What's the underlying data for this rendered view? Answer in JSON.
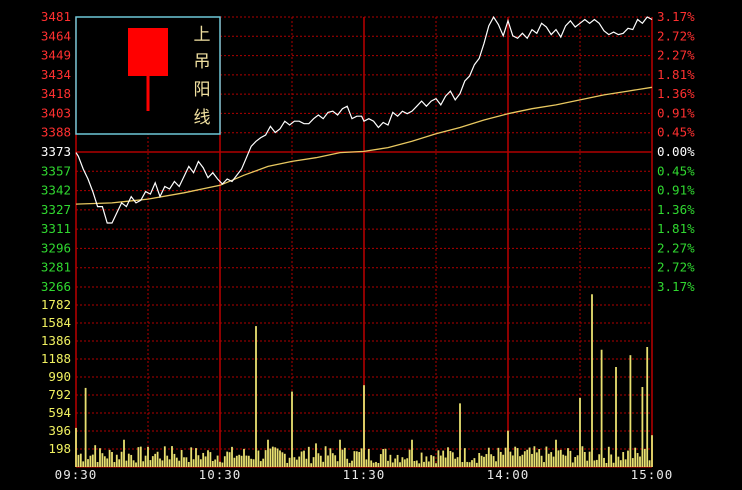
{
  "colors": {
    "background": "#000000",
    "grid": "#b00000",
    "up": "#ff3030",
    "down": "#30d830",
    "neutral": "#ffffff",
    "price_line": "#ffffff",
    "avg_line": "#e8c860",
    "volume": "#e8e070",
    "volume_label": "#f0f060",
    "time_label": "#e8e8e8",
    "legend_border": "#6ec8d8",
    "candle": "#ff0000",
    "legend_text": "#f0e0a0"
  },
  "legend": {
    "text_chars": [
      "上",
      "吊",
      "阳",
      "线"
    ],
    "pattern": "hanging-man-bullish-candle"
  },
  "chart_data": [
    {
      "type": "line",
      "name": "intraday-price",
      "x_axis": {
        "ticks": [
          "09:30",
          "10:30",
          "11:30",
          "14:00",
          "15:00"
        ],
        "trading_minutes_range": [
          0,
          240
        ]
      },
      "y_left_ticks": [
        "3481",
        "3464",
        "3449",
        "3434",
        "3418",
        "3403",
        "3388",
        "3373",
        "3357",
        "3342",
        "3327",
        "3311",
        "3296",
        "3281",
        "3266"
      ],
      "y_right_ticks": [
        "3.17%",
        "2.72%",
        "2.27%",
        "1.81%",
        "1.36%",
        "0.91%",
        "0.45%",
        "0.00%",
        "0.45%",
        "0.91%",
        "1.36%",
        "1.81%",
        "2.27%",
        "2.72%",
        "3.17%"
      ],
      "ylim": [
        3266,
        3481
      ],
      "reference_price": 3373,
      "series": [
        {
          "role": "price",
          "points": [
            [
              0,
              3373
            ],
            [
              1,
              3370
            ],
            [
              3,
              3360
            ],
            [
              5,
              3352
            ],
            [
              7,
              3342
            ],
            [
              9,
              3330
            ],
            [
              11,
              3330
            ],
            [
              13,
              3317
            ],
            [
              15,
              3317
            ],
            [
              17,
              3325
            ],
            [
              19,
              3333
            ],
            [
              21,
              3330
            ],
            [
              23,
              3338
            ],
            [
              25,
              3333
            ],
            [
              27,
              3335
            ],
            [
              29,
              3342
            ],
            [
              31,
              3340
            ],
            [
              33,
              3349
            ],
            [
              35,
              3338
            ],
            [
              37,
              3346
            ],
            [
              39,
              3344
            ],
            [
              41,
              3350
            ],
            [
              43,
              3346
            ],
            [
              45,
              3354
            ],
            [
              47,
              3362
            ],
            [
              49,
              3357
            ],
            [
              51,
              3366
            ],
            [
              53,
              3361
            ],
            [
              55,
              3353
            ],
            [
              57,
              3357
            ],
            [
              59,
              3352
            ],
            [
              61,
              3348
            ],
            [
              63,
              3352
            ],
            [
              65,
              3350
            ],
            [
              67,
              3355
            ],
            [
              69,
              3360
            ],
            [
              71,
              3369
            ],
            [
              73,
              3378
            ],
            [
              75,
              3382
            ],
            [
              77,
              3385
            ],
            [
              79,
              3387
            ],
            [
              81,
              3394
            ],
            [
              83,
              3389
            ],
            [
              85,
              3392
            ],
            [
              87,
              3398
            ],
            [
              89,
              3395
            ],
            [
              91,
              3398
            ],
            [
              93,
              3398
            ],
            [
              95,
              3396
            ],
            [
              97,
              3396
            ],
            [
              99,
              3400
            ],
            [
              101,
              3403
            ],
            [
              103,
              3400
            ],
            [
              105,
              3405
            ],
            [
              107,
              3406
            ],
            [
              109,
              3403
            ],
            [
              111,
              3408
            ],
            [
              113,
              3410
            ],
            [
              115,
              3400
            ],
            [
              117,
              3402
            ],
            [
              119,
              3402
            ],
            [
              120,
              3398
            ],
            [
              122,
              3400
            ],
            [
              124,
              3398
            ],
            [
              126,
              3393
            ],
            [
              128,
              3397
            ],
            [
              130,
              3395
            ],
            [
              132,
              3405
            ],
            [
              134,
              3402
            ],
            [
              136,
              3406
            ],
            [
              138,
              3404
            ],
            [
              140,
              3406
            ],
            [
              142,
              3410
            ],
            [
              144,
              3414
            ],
            [
              146,
              3410
            ],
            [
              148,
              3414
            ],
            [
              150,
              3416
            ],
            [
              152,
              3411
            ],
            [
              154,
              3418
            ],
            [
              156,
              3422
            ],
            [
              158,
              3415
            ],
            [
              160,
              3420
            ],
            [
              162,
              3430
            ],
            [
              164,
              3434
            ],
            [
              166,
              3443
            ],
            [
              168,
              3448
            ],
            [
              170,
              3460
            ],
            [
              172,
              3474
            ],
            [
              174,
              3481
            ],
            [
              176,
              3475
            ],
            [
              178,
              3466
            ],
            [
              180,
              3478
            ],
            [
              182,
              3466
            ],
            [
              184,
              3464
            ],
            [
              186,
              3468
            ],
            [
              188,
              3464
            ],
            [
              190,
              3471
            ],
            [
              192,
              3468
            ],
            [
              194,
              3476
            ],
            [
              196,
              3473
            ],
            [
              198,
              3467
            ],
            [
              200,
              3471
            ],
            [
              202,
              3465
            ],
            [
              204,
              3474
            ],
            [
              206,
              3478
            ],
            [
              208,
              3473
            ],
            [
              210,
              3476
            ],
            [
              212,
              3479
            ],
            [
              214,
              3476
            ],
            [
              216,
              3479
            ],
            [
              218,
              3476
            ],
            [
              220,
              3470
            ],
            [
              222,
              3467
            ],
            [
              224,
              3469
            ],
            [
              226,
              3467
            ],
            [
              228,
              3468
            ],
            [
              230,
              3472
            ],
            [
              232,
              3471
            ],
            [
              234,
              3479
            ],
            [
              236,
              3476
            ],
            [
              238,
              3481
            ],
            [
              240,
              3479
            ]
          ]
        },
        {
          "role": "average",
          "points": [
            [
              0,
              3332
            ],
            [
              15,
              3333
            ],
            [
              30,
              3336
            ],
            [
              45,
              3341
            ],
            [
              55,
              3345
            ],
            [
              60,
              3347
            ],
            [
              65,
              3351
            ],
            [
              70,
              3355
            ],
            [
              80,
              3362
            ],
            [
              90,
              3366
            ],
            [
              100,
              3369
            ],
            [
              110,
              3373
            ],
            [
              120,
              3374
            ],
            [
              130,
              3377
            ],
            [
              140,
              3382
            ],
            [
              150,
              3388
            ],
            [
              160,
              3393
            ],
            [
              170,
              3399
            ],
            [
              180,
              3404
            ],
            [
              190,
              3408
            ],
            [
              200,
              3411
            ],
            [
              210,
              3415
            ],
            [
              220,
              3419
            ],
            [
              230,
              3422
            ],
            [
              240,
              3425
            ]
          ]
        }
      ]
    },
    {
      "type": "bar",
      "name": "volume",
      "y_ticks": [
        "1782",
        "1584",
        "1386",
        "1188",
        "990",
        "792",
        "594",
        "396",
        "198"
      ],
      "ylim": [
        0,
        1980
      ],
      "tall_bars": [
        [
          0,
          430
        ],
        [
          4,
          870
        ],
        [
          8,
          240
        ],
        [
          20,
          300
        ],
        [
          40,
          230
        ],
        [
          75,
          1550
        ],
        [
          80,
          300
        ],
        [
          90,
          830
        ],
        [
          100,
          260
        ],
        [
          110,
          300
        ],
        [
          120,
          900
        ],
        [
          140,
          300
        ],
        [
          160,
          700
        ],
        [
          180,
          400
        ],
        [
          200,
          300
        ],
        [
          210,
          760
        ],
        [
          215,
          1900
        ],
        [
          219,
          1290
        ],
        [
          225,
          1100
        ],
        [
          231,
          1230
        ],
        [
          236,
          880
        ],
        [
          238,
          1320
        ],
        [
          240,
          350
        ]
      ]
    }
  ]
}
